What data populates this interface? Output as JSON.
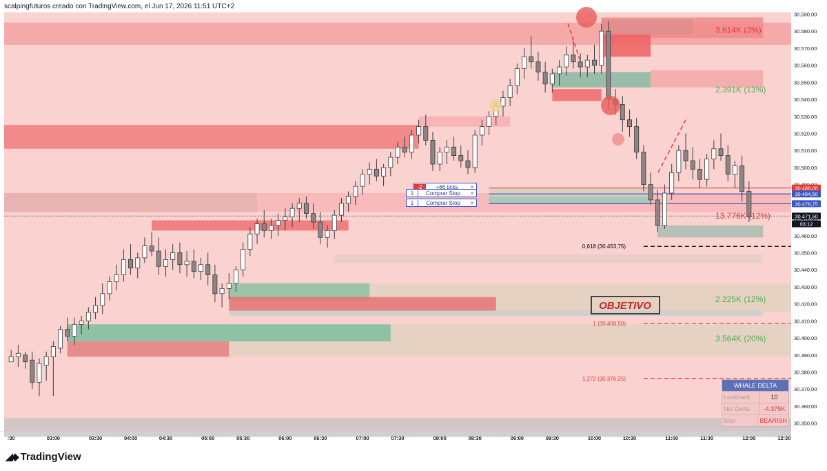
{
  "header": {
    "title": "scalpingfuturos creado con TradingView.com, el Jun 17, 2026 11:51 UTC+2"
  },
  "brand": {
    "name": "TradingView"
  },
  "colors": {
    "up": "#ffffff",
    "down": "#8f8585",
    "zone_red": "#f08080",
    "zone_green": "#4fa58c",
    "bg": "#fad2d0",
    "ma": "#3b56c4"
  },
  "orders": {
    "badge": "-2",
    "ticks": "+66 ticks",
    "rows": [
      {
        "qty": "1",
        "label": "Comprar Stop",
        "close": "×"
      },
      {
        "qty": "1",
        "label": "Comprar Stop",
        "close": "×"
      }
    ]
  },
  "annotations": {
    "objective": "OBJETIVO",
    "targets": [
      "3.614K (3%)",
      "2.391K (13%)",
      "13.776K (12%)",
      "2.225K (12%)",
      "3.564K (20%)"
    ],
    "fib": [
      "0,618 (30.453,75)",
      "1 (30.408,50)",
      "1,272 (30.376,25)"
    ]
  },
  "whale_delta": {
    "title": "WHALE DELTA",
    "rows": [
      {
        "key": "Lookback",
        "value": "10"
      },
      {
        "key": "Net Delta",
        "value": "-4.375K"
      },
      {
        "key": "Bias",
        "value": "BEARISH"
      }
    ]
  },
  "chart_data": {
    "type": "candlestick",
    "ylim": [
      30345,
      30591
    ],
    "xlim": [
      -1,
      111
    ],
    "y_ticks": [
      "30.590,00",
      "30.580,00",
      "30.570,00",
      "30.560,00",
      "30.550,00",
      "30.540,00",
      "30.530,00",
      "30.520,00",
      "30.510,00",
      "30.500,00",
      "30.490,00",
      "30.480,00",
      "30.470,00",
      "30.460,00",
      "30.450,00",
      "30.440,00",
      "30.430,00",
      "30.420,00",
      "30.410,00",
      "30.400,00",
      "30.390,00",
      "30.380,00",
      "30.370,00",
      "30.360,00",
      "30.350,00"
    ],
    "x_ticks": [
      {
        "i": 0,
        "label": ":30"
      },
      {
        "i": 6,
        "label": "03:00"
      },
      {
        "i": 12,
        "label": "03:30"
      },
      {
        "i": 17,
        "label": "04:00"
      },
      {
        "i": 22,
        "label": "04:30"
      },
      {
        "i": 28,
        "label": "05:00"
      },
      {
        "i": 33,
        "label": "05:30"
      },
      {
        "i": 39,
        "label": "06:00"
      },
      {
        "i": 44,
        "label": "06:30"
      },
      {
        "i": 50,
        "label": "07:00"
      },
      {
        "i": 55,
        "label": "07:30"
      },
      {
        "i": 61,
        "label": "08:00"
      },
      {
        "i": 66,
        "label": "08:30"
      },
      {
        "i": 72,
        "label": "09:00"
      },
      {
        "i": 77,
        "label": "09:30"
      },
      {
        "i": 83,
        "label": "10:00"
      },
      {
        "i": 88,
        "label": "10:30"
      },
      {
        "i": 94,
        "label": "11:00"
      },
      {
        "i": 99,
        "label": "11:30"
      },
      {
        "i": 105,
        "label": "12:00"
      },
      {
        "i": 110,
        "label": "12:30"
      }
    ],
    "price_labels": [
      {
        "y": 30488.0,
        "text": "30.488,00",
        "color": "#e53935"
      },
      {
        "y": 30484.5,
        "text": "30.484,50",
        "color": "#3b56c4"
      },
      {
        "y": 30478.75,
        "text": "30.478,75",
        "color": "#3b56c4"
      },
      {
        "y": 30471.5,
        "text": "30.471,50",
        "color": "#131722"
      },
      {
        "y": 30467.0,
        "text": "03:12",
        "color": "#131722"
      }
    ],
    "zones": [
      {
        "x0": -1,
        "x1": 111,
        "y0": 30572,
        "y1": 30585,
        "color": "#f3a3a3"
      },
      {
        "x0": -1,
        "x1": 58,
        "y0": 30511,
        "y1": 30525,
        "color": "#ef7f7f"
      },
      {
        "x0": -1,
        "x1": 35,
        "y0": 30474,
        "y1": 30485,
        "color": "#8c9a92"
      },
      {
        "x0": -1,
        "x1": 111,
        "y0": 30474,
        "y1": 30485,
        "color": "#f7b6b6"
      },
      {
        "x0": 20,
        "x1": 48,
        "y0": 30463,
        "y1": 30469,
        "color": "#ef7272"
      },
      {
        "x0": 84,
        "x1": 97,
        "y0": 30578,
        "y1": 30587,
        "color": "#8d9890"
      },
      {
        "x0": 84,
        "x1": 107,
        "y0": 30576,
        "y1": 30588,
        "color": "#f08c8c"
      },
      {
        "x0": 84,
        "x1": 91,
        "y0": 30565,
        "y1": 30578,
        "color": "#ef6262"
      },
      {
        "x0": 77,
        "x1": 91,
        "y0": 30547,
        "y1": 30556,
        "color": "#88b9a4"
      },
      {
        "x0": 77,
        "x1": 84,
        "y0": 30539,
        "y1": 30546,
        "color": "#ef6a6a"
      },
      {
        "x0": 91,
        "x1": 107,
        "y0": 30547,
        "y1": 30557,
        "color": "#f2a8a8"
      },
      {
        "x0": 58,
        "x1": 71,
        "y0": 30524,
        "y1": 30530,
        "color": "#f6b0b0"
      },
      {
        "x0": 68,
        "x1": 91,
        "y0": 30481,
        "y1": 30488,
        "color": "#d5cfc0"
      },
      {
        "x0": 68,
        "x1": 91,
        "y0": 30479,
        "y1": 30483,
        "color": "#9fc7b6"
      },
      {
        "x0": 92,
        "x1": 107,
        "y0": 30459,
        "y1": 30466,
        "color": "#a9bdb3"
      },
      {
        "x0": 46,
        "x1": 107,
        "y0": 30444,
        "y1": 30449,
        "color": "#e5cfc9"
      },
      {
        "x0": 31,
        "x1": 111,
        "y0": 30415,
        "y1": 30432,
        "color": "#e2d2c0"
      },
      {
        "x0": 31,
        "x1": 51,
        "y0": 30422,
        "y1": 30432,
        "color": "#8fc1a4"
      },
      {
        "x0": 31,
        "x1": 69,
        "y0": 30416,
        "y1": 30424,
        "color": "#e87474"
      },
      {
        "x0": 31,
        "x1": 107,
        "y0": 30413,
        "y1": 30416,
        "color": "#c9d0cf"
      },
      {
        "x0": 8,
        "x1": 111,
        "y0": 30389,
        "y1": 30408,
        "color": "#e2d2c0"
      },
      {
        "x0": 8,
        "x1": 54,
        "y0": 30398,
        "y1": 30408,
        "color": "#7fbfa0"
      },
      {
        "x0": 8,
        "x1": 31,
        "y0": 30389,
        "y1": 30398,
        "color": "#e58080"
      },
      {
        "x0": -1,
        "x1": 111,
        "y0": 30342,
        "y1": 30353,
        "color": "#cbc4c4"
      }
    ],
    "hlines": [
      {
        "y": 30453.75,
        "x0": 90,
        "x1": 111,
        "color": "#000000",
        "dash": "6,4"
      },
      {
        "y": 30408.5,
        "x0": 90,
        "x1": 111,
        "color": "#e53935",
        "dash": "6,4"
      },
      {
        "y": 30376.25,
        "x0": 90,
        "x1": 111,
        "color": "#e53935",
        "dash": "6,4"
      },
      {
        "y": 30488,
        "x0": 68,
        "x1": 111,
        "color": "#e53935",
        "dash": ""
      },
      {
        "y": 30484.5,
        "x0": 68,
        "x1": 111,
        "color": "#3b56c4",
        "dash": ""
      },
      {
        "y": 30478.75,
        "x0": 68,
        "x1": 111,
        "color": "#3b56c4",
        "dash": ""
      },
      {
        "y": 30471.5,
        "x0": -1,
        "x1": 111,
        "color": "#9a7777",
        "dash": "2,2"
      }
    ],
    "candles": [
      [
        30386,
        30393,
        30386,
        30389
      ],
      [
        30389,
        30396,
        30383,
        30391
      ],
      [
        30390,
        30392,
        30382,
        30386
      ],
      [
        30387,
        30392,
        30370,
        30374
      ],
      [
        30374,
        30388,
        30366,
        30385
      ],
      [
        30384,
        30392,
        30375,
        30389
      ],
      [
        30389,
        30398,
        30366,
        30395
      ],
      [
        30394,
        30407,
        30391,
        30405
      ],
      [
        30405,
        30412,
        30398,
        30401
      ],
      [
        30401,
        30412,
        30396,
        30408
      ],
      [
        30408,
        30413,
        30402,
        30410
      ],
      [
        30410,
        30418,
        30405,
        30415
      ],
      [
        30415,
        30424,
        30411,
        30419
      ],
      [
        30419,
        30432,
        30414,
        30426
      ],
      [
        30426,
        30436,
        30422,
        30433
      ],
      [
        30433,
        30443,
        30428,
        30437
      ],
      [
        30437,
        30452,
        30433,
        30446
      ],
      [
        30446,
        30455,
        30437,
        30441
      ],
      [
        30441,
        30450,
        30435,
        30447
      ],
      [
        30447,
        30459,
        30444,
        30454
      ],
      [
        30454,
        30462,
        30448,
        30451
      ],
      [
        30451,
        30459,
        30437,
        30442
      ],
      [
        30442,
        30452,
        30436,
        30446
      ],
      [
        30446,
        30455,
        30440,
        30450
      ],
      [
        30450,
        30456,
        30438,
        30443
      ],
      [
        30443,
        30451,
        30436,
        30445
      ],
      [
        30445,
        30452,
        30435,
        30439
      ],
      [
        30439,
        30447,
        30434,
        30443
      ],
      [
        30443,
        30450,
        30431,
        30437
      ],
      [
        30437,
        30443,
        30421,
        30426
      ],
      [
        30426,
        30432,
        30418,
        30429
      ],
      [
        30429,
        30438,
        30423,
        30432
      ],
      [
        30432,
        30442,
        30427,
        30440
      ],
      [
        30440,
        30456,
        30436,
        30452
      ],
      [
        30452,
        30465,
        30448,
        30461
      ],
      [
        30461,
        30470,
        30455,
        30467
      ],
      [
        30467,
        30475,
        30459,
        30463
      ],
      [
        30463,
        30470,
        30458,
        30466
      ],
      [
        30466,
        30473,
        30460,
        30469
      ],
      [
        30469,
        30476,
        30463,
        30471
      ],
      [
        30471,
        30479,
        30465,
        30476
      ],
      [
        30476,
        30482,
        30468,
        30479
      ],
      [
        30479,
        30483,
        30470,
        30473
      ],
      [
        30473,
        30479,
        30464,
        30468
      ],
      [
        30468,
        30474,
        30455,
        30459
      ],
      [
        30459,
        30466,
        30453,
        30463
      ],
      [
        30463,
        30475,
        30458,
        30472
      ],
      [
        30472,
        30482,
        30468,
        30479
      ],
      [
        30479,
        30486,
        30474,
        30483
      ],
      [
        30483,
        30492,
        30478,
        30489
      ],
      [
        30489,
        30499,
        30484,
        30496
      ],
      [
        30496,
        30503,
        30490,
        30499
      ],
      [
        30499,
        30505,
        30492,
        30495
      ],
      [
        30495,
        30502,
        30489,
        30500
      ],
      [
        30500,
        30509,
        30495,
        30506
      ],
      [
        30506,
        30515,
        30502,
        30512
      ],
      [
        30512,
        30518,
        30506,
        30509
      ],
      [
        30509,
        30522,
        30505,
        30519
      ],
      [
        30519,
        30528,
        30514,
        30524
      ],
      [
        30524,
        30531,
        30513,
        30516
      ],
      [
        30516,
        30521,
        30498,
        30502
      ],
      [
        30502,
        30512,
        30498,
        30509
      ],
      [
        30509,
        30516,
        30502,
        30512
      ],
      [
        30512,
        30518,
        30504,
        30507
      ],
      [
        30507,
        30513,
        30500,
        30504
      ],
      [
        30504,
        30510,
        30496,
        30500
      ],
      [
        30500,
        30522,
        30497,
        30519
      ],
      [
        30519,
        30528,
        30513,
        30524
      ],
      [
        30524,
        30533,
        30519,
        30530
      ],
      [
        30530,
        30539,
        30525,
        30536
      ],
      [
        30536,
        30545,
        30530,
        30541
      ],
      [
        30541,
        30552,
        30536,
        30548
      ],
      [
        30548,
        30561,
        30543,
        30558
      ],
      [
        30558,
        30570,
        30552,
        30565
      ],
      [
        30565,
        30577,
        30558,
        30562
      ],
      [
        30562,
        30568,
        30551,
        30556
      ],
      [
        30556,
        30562,
        30544,
        30549
      ],
      [
        30549,
        30558,
        30544,
        30555
      ],
      [
        30555,
        30563,
        30548,
        30559
      ],
      [
        30559,
        30571,
        30554,
        30566
      ],
      [
        30566,
        30574,
        30558,
        30562
      ],
      [
        30562,
        30567,
        30553,
        30559
      ],
      [
        30559,
        30566,
        30553,
        30563
      ],
      [
        30563,
        30572,
        30555,
        30560
      ],
      [
        30560,
        30584,
        30555,
        30580
      ],
      [
        30580,
        30586,
        30534,
        30540
      ],
      [
        30540,
        30546,
        30531,
        30537
      ],
      [
        30537,
        30542,
        30521,
        30528
      ],
      [
        30528,
        30534,
        30518,
        30524
      ],
      [
        30524,
        30529,
        30505,
        30509
      ],
      [
        30509,
        30513,
        30486,
        30490
      ],
      [
        30490,
        30497,
        30478,
        30481
      ],
      [
        30481,
        30487,
        30462,
        30466
      ],
      [
        30466,
        30490,
        30464,
        30485
      ],
      [
        30485,
        30502,
        30481,
        30497
      ],
      [
        30497,
        30513,
        30492,
        30510
      ],
      [
        30510,
        30520,
        30499,
        30504
      ],
      [
        30504,
        30512,
        30493,
        30499
      ],
      [
        30499,
        30505,
        30488,
        30493
      ],
      [
        30493,
        30508,
        30489,
        30505
      ],
      [
        30505,
        30516,
        30499,
        30511
      ],
      [
        30511,
        30520,
        30504,
        30507
      ],
      [
        30507,
        30513,
        30492,
        30496
      ],
      [
        30496,
        30504,
        30488,
        30501
      ],
      [
        30501,
        30507,
        30480,
        30486
      ],
      [
        30486,
        30492,
        30468,
        30471
      ]
    ]
  }
}
